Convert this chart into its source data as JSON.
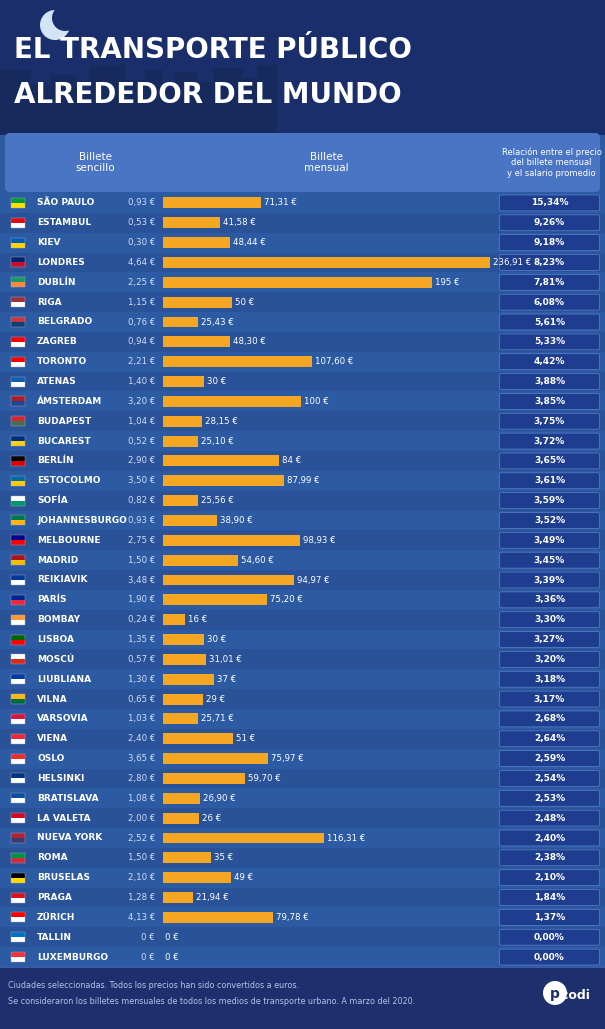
{
  "bg_color": "#2d5ba3",
  "bg_dark": "#1a2e6b",
  "bg_footer": "#1e2f6e",
  "bar_color": "#f5a623",
  "col_hdr_color": "#4a75c4",
  "pct_box_color": "#1e3d8f",
  "pct_border_color": "#5a82cc",
  "row_even": "#2d5ba3",
  "row_odd": "#2a5298",
  "text_white": "#ffffff",
  "text_light": "#d0ddf5",
  "title_line1": "EL TRANSPORTE PÚBLICO",
  "title_line2": "ALREDEDOR DEL MUNDO",
  "col1_header": "Billete\nsencillo",
  "col2_header": "Billete\nmensual",
  "col3_header": "Relación entre el precio\ndel billete mensual\ny el salario promedio",
  "footer_line1": "Ciudades seleccionadas. Todos los precios han sido convertidos a euros.",
  "footer_line2": "Se consideraron los billetes mensuales de todos los medios de transporte urbano. A marzo del 2020.",
  "cities": [
    {
      "name": "SÃO PAULO",
      "single": "0,93 €",
      "monthly": 71.31,
      "monthly_str": "71,31 €",
      "pct": "15,34%"
    },
    {
      "name": "ESTAMBUL",
      "single": "0,53 €",
      "monthly": 41.58,
      "monthly_str": "41,58 €",
      "pct": "9,26%"
    },
    {
      "name": "KIEV",
      "single": "0,30 €",
      "monthly": 48.44,
      "monthly_str": "48,44 €",
      "pct": "9,18%"
    },
    {
      "name": "LONDRES",
      "single": "4,64 €",
      "monthly": 236.91,
      "monthly_str": "236,91 €",
      "pct": "8,23%"
    },
    {
      "name": "DUBLÍN",
      "single": "2,25 €",
      "monthly": 195.0,
      "monthly_str": "195 €",
      "pct": "7,81%"
    },
    {
      "name": "RIGA",
      "single": "1,15 €",
      "monthly": 50.0,
      "monthly_str": "50 €",
      "pct": "6,08%"
    },
    {
      "name": "BELGRADO",
      "single": "0,76 €",
      "monthly": 25.43,
      "monthly_str": "25,43 €",
      "pct": "5,61%"
    },
    {
      "name": "ZAGREB",
      "single": "0,94 €",
      "monthly": 48.3,
      "monthly_str": "48,30 €",
      "pct": "5,33%"
    },
    {
      "name": "TORONTO",
      "single": "2,21 €",
      "monthly": 107.6,
      "monthly_str": "107,60 €",
      "pct": "4,42%"
    },
    {
      "name": "ATENAS",
      "single": "1,40 €",
      "monthly": 30.0,
      "monthly_str": "30 €",
      "pct": "3,88%"
    },
    {
      "name": "ÁMSTERDAM",
      "single": "3,20 €",
      "monthly": 100.0,
      "monthly_str": "100 €",
      "pct": "3,85%"
    },
    {
      "name": "BUDAPEST",
      "single": "1,04 €",
      "monthly": 28.15,
      "monthly_str": "28,15 €",
      "pct": "3,75%"
    },
    {
      "name": "BUCAREST",
      "single": "0,52 €",
      "monthly": 25.1,
      "monthly_str": "25,10 €",
      "pct": "3,72%"
    },
    {
      "name": "BERLÍN",
      "single": "2,90 €",
      "monthly": 84.0,
      "monthly_str": "84 €",
      "pct": "3,65%"
    },
    {
      "name": "ESTOCOLMO",
      "single": "3,50 €",
      "monthly": 87.99,
      "monthly_str": "87,99 €",
      "pct": "3,61%"
    },
    {
      "name": "SOFÍA",
      "single": "0,82 €",
      "monthly": 25.56,
      "monthly_str": "25,56 €",
      "pct": "3,59%"
    },
    {
      "name": "JOHANNESBURGO",
      "single": "0,93 €",
      "monthly": 38.9,
      "monthly_str": "38,90 €",
      "pct": "3,52%"
    },
    {
      "name": "MELBOURNE",
      "single": "2,75 €",
      "monthly": 98.93,
      "monthly_str": "98,93 €",
      "pct": "3,49%"
    },
    {
      "name": "MADRID",
      "single": "1,50 €",
      "monthly": 54.6,
      "monthly_str": "54,60 €",
      "pct": "3,45%"
    },
    {
      "name": "REIKIAVIK",
      "single": "3,48 €",
      "monthly": 94.97,
      "monthly_str": "94,97 €",
      "pct": "3,39%"
    },
    {
      "name": "PARÍS",
      "single": "1,90 €",
      "monthly": 75.2,
      "monthly_str": "75,20 €",
      "pct": "3,36%"
    },
    {
      "name": "BOMBAY",
      "single": "0,24 €",
      "monthly": 16.0,
      "monthly_str": "16 €",
      "pct": "3,30%"
    },
    {
      "name": "LISBOA",
      "single": "1,35 €",
      "monthly": 30.0,
      "monthly_str": "30 €",
      "pct": "3,27%"
    },
    {
      "name": "MOSCÚ",
      "single": "0,57 €",
      "monthly": 31.01,
      "monthly_str": "31,01 €",
      "pct": "3,20%"
    },
    {
      "name": "LIUBLIANA",
      "single": "1,30 €",
      "monthly": 37.0,
      "monthly_str": "37 €",
      "pct": "3,18%"
    },
    {
      "name": "VILNA",
      "single": "0,65 €",
      "monthly": 29.0,
      "monthly_str": "29 €",
      "pct": "3,17%"
    },
    {
      "name": "VARSOVIA",
      "single": "1,03 €",
      "monthly": 25.71,
      "monthly_str": "25,71 €",
      "pct": "2,68%"
    },
    {
      "name": "VIENA",
      "single": "2,40 €",
      "monthly": 51.0,
      "monthly_str": "51 €",
      "pct": "2,64%"
    },
    {
      "name": "OSLO",
      "single": "3,65 €",
      "monthly": 75.97,
      "monthly_str": "75,97 €",
      "pct": "2,59%"
    },
    {
      "name": "HELSINKI",
      "single": "2,80 €",
      "monthly": 59.7,
      "monthly_str": "59,70 €",
      "pct": "2,54%"
    },
    {
      "name": "BRATISLAVA",
      "single": "1,08 €",
      "monthly": 26.9,
      "monthly_str": "26,90 €",
      "pct": "2,53%"
    },
    {
      "name": "LA VALETA",
      "single": "2,00 €",
      "monthly": 26.0,
      "monthly_str": "26 €",
      "pct": "2,48%"
    },
    {
      "name": "NUEVA YORK",
      "single": "2,52 €",
      "monthly": 116.31,
      "monthly_str": "116,31 €",
      "pct": "2,40%"
    },
    {
      "name": "ROMA",
      "single": "1,50 €",
      "monthly": 35.0,
      "monthly_str": "35 €",
      "pct": "2,38%"
    },
    {
      "name": "BRUSELAS",
      "single": "2,10 €",
      "monthly": 49.0,
      "monthly_str": "49 €",
      "pct": "2,10%"
    },
    {
      "name": "PRAGA",
      "single": "1,28 €",
      "monthly": 21.94,
      "monthly_str": "21,94 €",
      "pct": "1,84%"
    },
    {
      "name": "ZÜRICH",
      "single": "4,13 €",
      "monthly": 79.78,
      "monthly_str": "79,78 €",
      "pct": "1,37%"
    },
    {
      "name": "TALLIN",
      "single": "0 €",
      "monthly": 0.0,
      "monthly_str": "0 €",
      "pct": "0,00%"
    },
    {
      "name": "LUXEMBURGO",
      "single": "0 €",
      "monthly": 0.0,
      "monthly_str": "0 €",
      "pct": "0,00%"
    }
  ],
  "max_bar_value": 236.91,
  "flag_colors": [
    [
      "#009c3b",
      "#ffdf00"
    ],
    [
      "#e30a17",
      "#ffffff"
    ],
    [
      "#005bbb",
      "#ffd500"
    ],
    [
      "#012169",
      "#c8102e"
    ],
    [
      "#169b62",
      "#ff883e"
    ],
    [
      "#9e3039",
      "#ffffff"
    ],
    [
      "#c6363c",
      "#0c4076"
    ],
    [
      "#ff0000",
      "#ffffff"
    ],
    [
      "#ff0000",
      "#ffffff"
    ],
    [
      "#0d5eaf",
      "#ffffff"
    ],
    [
      "#ae1c28",
      "#21468b"
    ],
    [
      "#ce2939",
      "#477050"
    ],
    [
      "#002b7f",
      "#fcd116"
    ],
    [
      "#000000",
      "#dd0000"
    ],
    [
      "#006aa7",
      "#fecc02"
    ],
    [
      "#ffffff",
      "#00966e"
    ],
    [
      "#007a4d",
      "#ffb612"
    ],
    [
      "#00008b",
      "#ff0000"
    ],
    [
      "#aa151b",
      "#f1bf00"
    ],
    [
      "#003897",
      "#ffffff"
    ],
    [
      "#002395",
      "#ed2939"
    ],
    [
      "#ff9933",
      "#ffffff"
    ],
    [
      "#006600",
      "#ff0000"
    ],
    [
      "#ffffff",
      "#d52b1e"
    ],
    [
      "#003da5",
      "#ffffff"
    ],
    [
      "#fdba0b",
      "#006a44"
    ],
    [
      "#dc143c",
      "#ffffff"
    ],
    [
      "#ed2939",
      "#ffffff"
    ],
    [
      "#ef2b2d",
      "#ffffff"
    ],
    [
      "#003580",
      "#ffffff"
    ],
    [
      "#0b4ea2",
      "#ffffff"
    ],
    [
      "#cf0921",
      "#ffffff"
    ],
    [
      "#b22234",
      "#3c3b6e"
    ],
    [
      "#009246",
      "#ce2b37"
    ],
    [
      "#000000",
      "#ffdd00"
    ],
    [
      "#d7141a",
      "#ffffff"
    ],
    [
      "#ff0000",
      "#ffffff"
    ],
    [
      "#0072ce",
      "#ffffff"
    ],
    [
      "#ef3340",
      "#ffffff"
    ]
  ]
}
